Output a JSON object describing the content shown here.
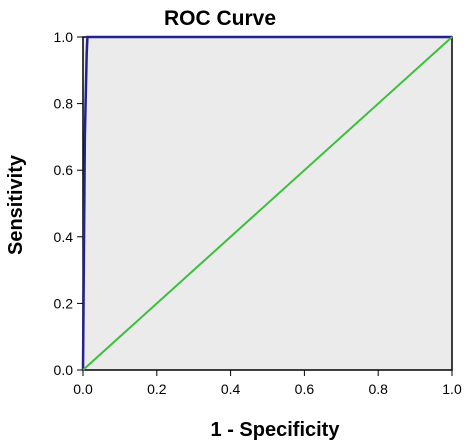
{
  "chart_data": {
    "type": "line",
    "title": "ROC Curve",
    "xlabel": "1 - Specificity",
    "ylabel": "Sensitivity",
    "xlim": [
      0,
      1
    ],
    "ylim": [
      0,
      1
    ],
    "xticks": [
      "0.0",
      "0.2",
      "0.4",
      "0.6",
      "0.8",
      "1.0"
    ],
    "yticks": [
      "0.0",
      "0.2",
      "0.4",
      "0.6",
      "0.8",
      "1.0"
    ],
    "grid": false,
    "legend": "none",
    "plot_background": "#ebebeb",
    "series": [
      {
        "color": "#23238e",
        "points": [
          [
            0.0,
            0.0
          ],
          [
            0.005,
            0.7
          ],
          [
            0.01,
            0.95
          ],
          [
            0.012,
            1.0
          ],
          [
            1.0,
            1.0
          ]
        ]
      },
      {
        "color": "#3cbf3c",
        "points": [
          [
            0.0,
            0.0
          ],
          [
            1.0,
            1.0
          ]
        ]
      }
    ]
  }
}
